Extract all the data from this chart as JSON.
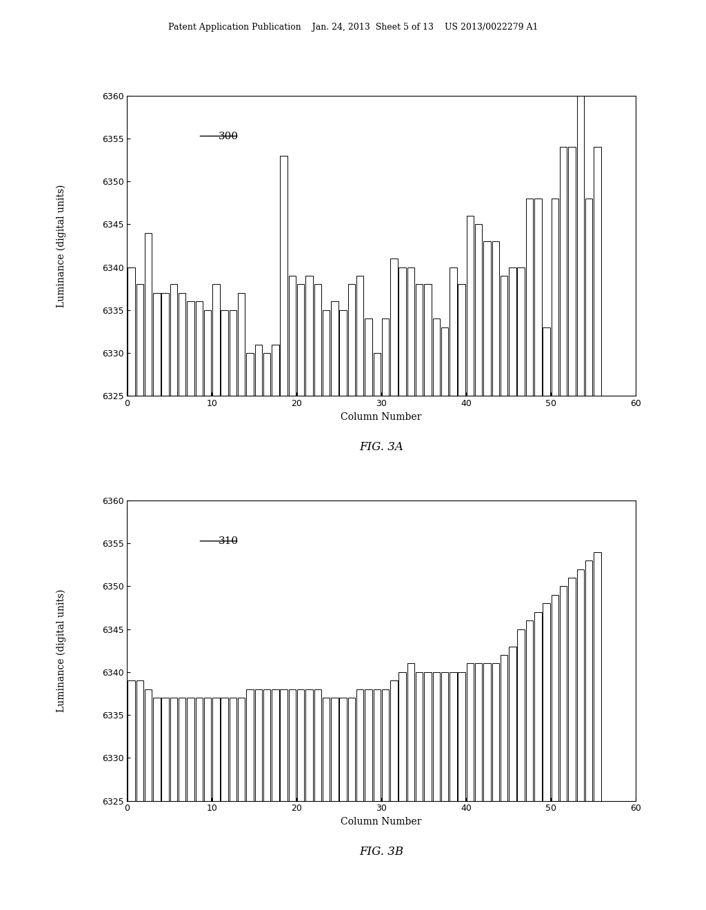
{
  "fig3a": {
    "label": "300",
    "xlabel": "Column Number",
    "ylabel": "Luminance (digital units)",
    "ylim": [
      6325,
      6360
    ],
    "xlim": [
      0,
      60
    ],
    "yticks": [
      6325,
      6330,
      6335,
      6340,
      6345,
      6350,
      6355,
      6360
    ],
    "xticks": [
      0,
      10,
      20,
      30,
      40,
      50,
      60
    ],
    "values": [
      6340,
      6338,
      6344,
      6337,
      6337,
      6338,
      6337,
      6336,
      6336,
      6335,
      6338,
      6335,
      6335,
      6337,
      6330,
      6331,
      6330,
      6331,
      6353,
      6339,
      6338,
      6339,
      6338,
      6335,
      6336,
      6335,
      6338,
      6339,
      6334,
      6330,
      6334,
      6341,
      6340,
      6340,
      6338,
      6338,
      6334,
      6333,
      6340,
      6338,
      6346,
      6345,
      6343,
      6343,
      6339,
      6340,
      6340,
      6348,
      6348,
      6333,
      6348,
      6354,
      6354,
      6360,
      6348,
      6354
    ]
  },
  "fig3b": {
    "label": "310",
    "xlabel": "Column Number",
    "ylabel": "Luminance (digital units)",
    "ylim": [
      6325,
      6360
    ],
    "xlim": [
      0,
      60
    ],
    "yticks": [
      6325,
      6330,
      6335,
      6340,
      6345,
      6350,
      6355,
      6360
    ],
    "xticks": [
      0,
      10,
      20,
      30,
      40,
      50,
      60
    ],
    "values": [
      6339,
      6339,
      6338,
      6337,
      6337,
      6337,
      6337,
      6337,
      6337,
      6337,
      6337,
      6337,
      6337,
      6337,
      6338,
      6338,
      6338,
      6338,
      6338,
      6338,
      6338,
      6338,
      6338,
      6337,
      6337,
      6337,
      6337,
      6338,
      6338,
      6338,
      6338,
      6339,
      6340,
      6341,
      6340,
      6340,
      6340,
      6340,
      6340,
      6340,
      6341,
      6341,
      6341,
      6341,
      6342,
      6343,
      6345,
      6346,
      6347,
      6348,
      6349,
      6350,
      6351,
      6352,
      6353,
      6354
    ]
  },
  "fig3a_caption": "FIG. 3A",
  "fig3b_caption": "FIG. 3B",
  "background_color": "#ffffff",
  "bar_color": "#ffffff",
  "bar_edge_color": "#000000",
  "header_text": "Patent Application Publication    Jan. 24, 2013  Sheet 5 of 13    US 2013/0022279 A1"
}
